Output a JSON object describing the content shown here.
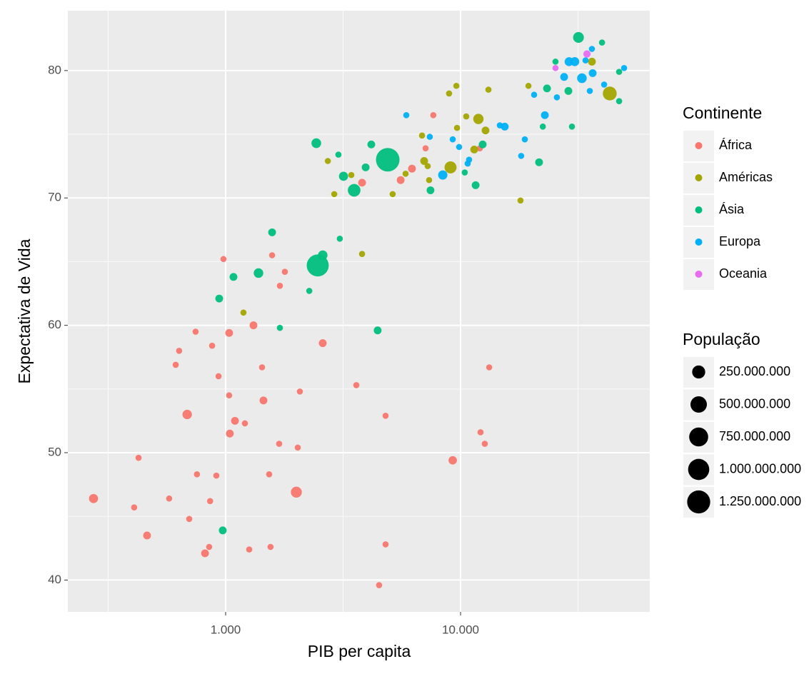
{
  "chart_data": {
    "type": "scatter",
    "x_label": "PIB per capita",
    "y_label": "Expectativa de Vida",
    "log_x": true,
    "grid": true,
    "xlim": [
      213,
      63870
    ],
    "ylim": [
      37.5,
      84.7
    ],
    "xticks": [
      {
        "value": 1000,
        "label": "1.000"
      },
      {
        "value": 10000,
        "label": "10.000"
      }
    ],
    "yticks": [
      40,
      50,
      60,
      70,
      80
    ],
    "color_legend_title": "Continente",
    "size_legend": {
      "title": "População",
      "values": [
        {
          "value": 250000000,
          "label": "250.000.000"
        },
        {
          "value": 500000000,
          "label": "500.000.000"
        },
        {
          "value": 750000000,
          "label": "750.000.000"
        },
        {
          "value": 1000000000,
          "label": "1.000.000.000"
        },
        {
          "value": 1250000000,
          "label": "1.250.000.000"
        }
      ]
    },
    "series": [
      {
        "name": "África",
        "color": "#F8766D",
        "x": [
          274,
          426,
          408,
          463,
          575,
          700,
          686,
          613,
          634,
          745,
          755,
          817,
          851,
          859,
          876,
          913,
          933,
          979,
          1035,
          1035,
          1042,
          1096,
          1208,
          1314,
          1260,
          1429,
          1449,
          1532,
          1553,
          1577,
          1690,
          1702,
          1787,
          2000,
          2028,
          2070,
          2590,
          3600,
          3808,
          4500,
          4795,
          4795,
          5559,
          6210,
          7097,
          7656,
          9260,
          12160,
          12680,
          13240,
          12080
        ],
        "values": [
          46.4,
          49.6,
          45.7,
          43.5,
          46.4,
          44.8,
          53.0,
          56.9,
          58.0,
          59.5,
          48.3,
          42.1,
          42.6,
          46.2,
          58.4,
          48.2,
          56.0,
          65.2,
          54.5,
          59.4,
          51.5,
          52.5,
          52.3,
          60.0,
          42.4,
          56.7,
          54.1,
          48.3,
          42.6,
          65.5,
          50.7,
          63.1,
          64.2,
          46.9,
          50.4,
          54.8,
          58.6,
          55.3,
          71.2,
          39.6,
          52.9,
          42.8,
          71.4,
          72.3,
          73.9,
          76.5,
          49.4,
          51.6,
          50.7,
          56.7,
          73.9
        ],
        "sizes": [
          64000000,
          5000000,
          5000000,
          30000000,
          5000000,
          5000000,
          76000000,
          5000000,
          5000000,
          5000000,
          5000000,
          30000000,
          5000000,
          5000000,
          5000000,
          5000000,
          5000000,
          5000000,
          5000000,
          30000000,
          30000000,
          30000000,
          5000000,
          30000000,
          5000000,
          5000000,
          30000000,
          5000000,
          5000000,
          5000000,
          5000000,
          5000000,
          5000000,
          135000000,
          5000000,
          5000000,
          30000000,
          5000000,
          30000000,
          5000000,
          5000000,
          5000000,
          30000000,
          30000000,
          5000000,
          5000000,
          44000000,
          5000000,
          5000000,
          5000000,
          5000000
        ]
      },
      {
        "name": "Américas",
        "color": "#A3A500",
        "x": [
          1191,
          2723,
          2900,
          3428,
          3808,
          5140,
          5834,
          6855,
          6998,
          7245,
          7346,
          9064,
          8936,
          9594,
          9660,
          10570,
          11430,
          11910,
          12770,
          13140,
          17990,
          19450,
          36230,
          43150
        ],
        "values": [
          61.0,
          72.9,
          70.3,
          71.8,
          65.6,
          70.3,
          71.9,
          74.9,
          72.9,
          72.5,
          71.4,
          72.4,
          78.2,
          78.8,
          75.5,
          76.4,
          73.8,
          76.2,
          75.3,
          78.5,
          69.8,
          78.8,
          80.7,
          78.2
        ],
        "sizes": [
          5000000,
          5000000,
          5000000,
          5000000,
          5000000,
          5000000,
          5000000,
          5000000,
          30000000,
          5000000,
          5000000,
          190000000,
          5000000,
          5000000,
          5000000,
          5000000,
          30000000,
          108000000,
          30000000,
          5000000,
          5000000,
          5000000,
          30000000,
          301000000
        ]
      },
      {
        "name": "Ásia",
        "color": "#00BF7D",
        "x": [
          972,
          939,
          1080,
          1380,
          1577,
          1702,
          2270,
          2466,
          2590,
          2432,
          3020,
          3062,
          3175,
          3524,
          4169,
          3944,
          4436,
          4898,
          7447,
          10420,
          11590,
          12420,
          21580,
          22390,
          23330,
          28770,
          29790,
          31760,
          40000,
          47300,
          47300,
          25350
        ],
        "values": [
          43.9,
          62.1,
          63.8,
          64.1,
          67.3,
          59.8,
          62.7,
          64.7,
          65.5,
          74.3,
          73.4,
          66.8,
          71.7,
          70.6,
          74.2,
          72.4,
          59.6,
          73.0,
          70.6,
          72.0,
          71.0,
          74.2,
          72.8,
          75.6,
          78.6,
          78.4,
          75.6,
          82.6,
          82.2,
          79.9,
          77.6,
          80.7
        ],
        "sizes": [
          30000000,
          30000000,
          30000000,
          80000000,
          30000000,
          5000000,
          5000000,
          1110000000,
          80000000,
          85000000,
          5000000,
          5000000,
          65000000,
          224000000,
          30000000,
          30000000,
          30000000,
          1320000000,
          30000000,
          5000000,
          30000000,
          30000000,
          30000000,
          5000000,
          30000000,
          30000000,
          5000000,
          127000000,
          5000000,
          5000000,
          5000000,
          5000000
        ]
      },
      {
        "name": "Europa",
        "color": "#00B0F6",
        "x": [
          5875,
          7396,
          8400,
          9260,
          9860,
          10720,
          10870,
          14690,
          15420,
          18110,
          18770,
          20560,
          22840,
          25700,
          27590,
          28960,
          30620,
          32850,
          34040,
          35490,
          36490,
          36230,
          40830,
          49660
        ],
        "values": [
          76.5,
          74.8,
          71.8,
          74.6,
          74.0,
          72.7,
          73.0,
          75.7,
          75.6,
          73.3,
          74.6,
          78.1,
          76.5,
          77.9,
          79.5,
          80.7,
          80.7,
          79.4,
          80.8,
          78.4,
          79.8,
          81.7,
          78.9,
          80.2
        ],
        "sizes": [
          5000000,
          5000000,
          71000000,
          5000000,
          5000000,
          5000000,
          5000000,
          5000000,
          30000000,
          5000000,
          5000000,
          5000000,
          30000000,
          5000000,
          30000000,
          58000000,
          61000000,
          82000000,
          5000000,
          5000000,
          30000000,
          5000000,
          5000000,
          5000000
        ]
      },
      {
        "name": "Oceania",
        "color": "#E76BF3",
        "x": [
          25350,
          34510
        ],
        "values": [
          80.2,
          81.3
        ],
        "sizes": [
          5000000,
          20000000
        ]
      }
    ]
  }
}
